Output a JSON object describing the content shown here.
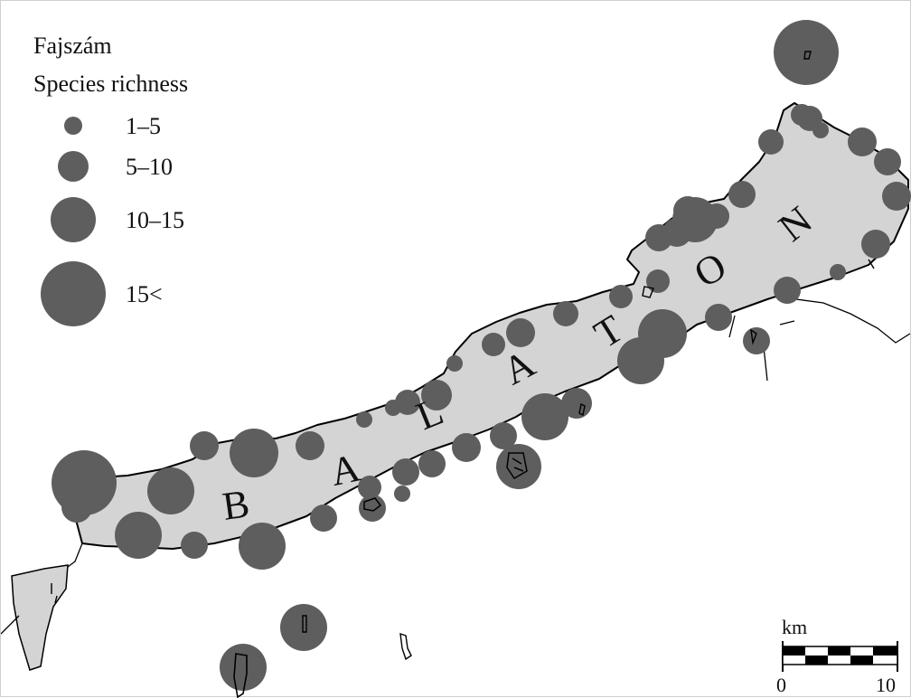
{
  "legend": {
    "title_hu": "Fajszám",
    "title_en": "Species richness",
    "classes": [
      {
        "label": "1–5",
        "size_class": 1
      },
      {
        "label": "5–10",
        "size_class": 2
      },
      {
        "label": "10–15",
        "size_class": 3
      },
      {
        "label": "15<",
        "size_class": 4
      }
    ]
  },
  "lake": {
    "letters": [
      "B",
      "A",
      "L",
      "A",
      "T",
      "O",
      "N"
    ]
  },
  "scale_bar": {
    "unit": "km",
    "start_label": "0",
    "end_label": "10"
  },
  "colors": {
    "circle_fill": "#5e5e5e",
    "lake_fill": "#d4d4d4",
    "outline": "#000000",
    "background": "#ffffff"
  }
}
